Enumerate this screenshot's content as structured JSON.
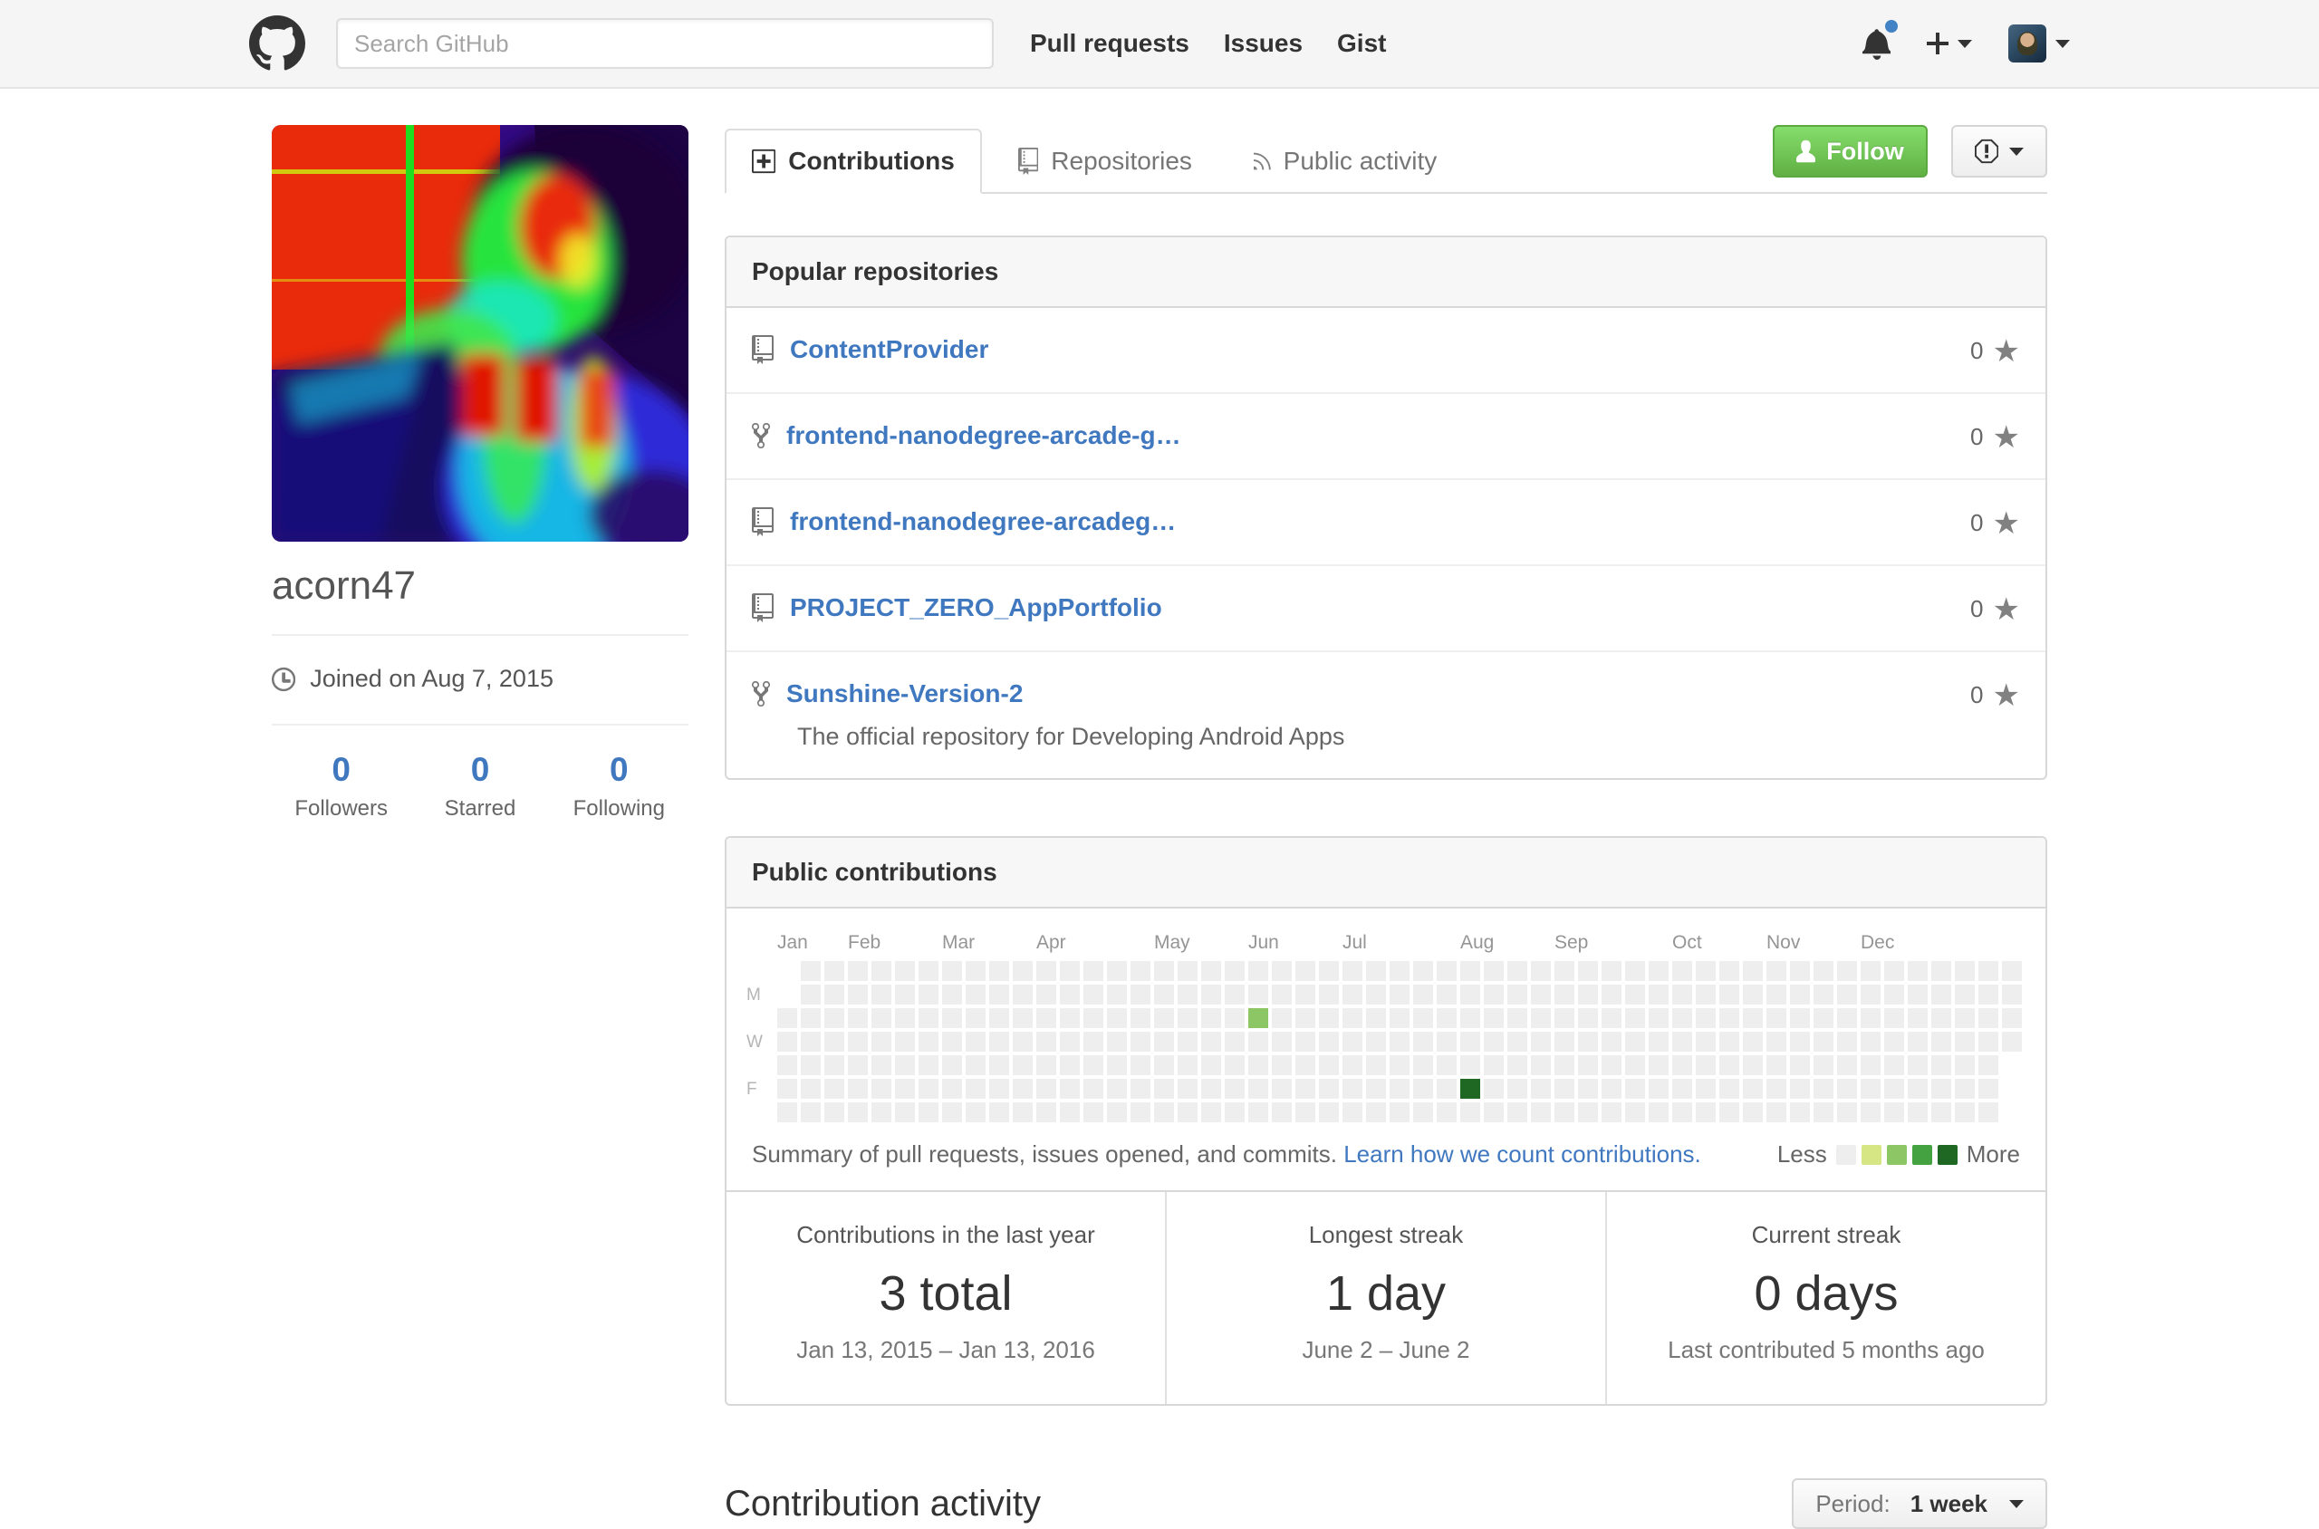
{
  "header": {
    "search_placeholder": "Search GitHub",
    "nav": [
      "Pull requests",
      "Issues",
      "Gist"
    ],
    "has_unread_notifications": true
  },
  "profile": {
    "username": "acorn47",
    "joined": "Joined on Aug 7, 2015",
    "stats": [
      {
        "count": "0",
        "label": "Followers"
      },
      {
        "count": "0",
        "label": "Starred"
      },
      {
        "count": "0",
        "label": "Following"
      }
    ]
  },
  "tabs": [
    {
      "label": "Contributions",
      "icon": "diff-added",
      "active": true
    },
    {
      "label": "Repositories",
      "icon": "repo",
      "active": false
    },
    {
      "label": "Public activity",
      "icon": "rss",
      "active": false
    }
  ],
  "actions": {
    "follow_label": "Follow"
  },
  "popular_repositories": {
    "title": "Popular repositories",
    "repos": [
      {
        "name": "ContentProvider",
        "icon": "repo",
        "stars": "0"
      },
      {
        "name": "frontend-nanodegree-arcade-g…",
        "icon": "repo-forked",
        "stars": "0"
      },
      {
        "name": "frontend-nanodegree-arcadeg…",
        "icon": "repo",
        "stars": "0"
      },
      {
        "name": "PROJECT_ZERO_AppPortfolio",
        "icon": "repo",
        "stars": "0"
      },
      {
        "name": "Sunshine-Version-2",
        "icon": "repo-forked",
        "stars": "0",
        "description": "The official repository for Developing Android Apps"
      }
    ]
  },
  "contributions": {
    "title": "Public contributions",
    "summary_text": "Summary of pull requests, issues opened, and commits.",
    "summary_link": "Learn how we count contributions.",
    "legend": {
      "less": "Less",
      "more": "More",
      "colors": [
        "#eeeeee",
        "#d6e685",
        "#8cc665",
        "#44a340",
        "#1e6823"
      ]
    },
    "calendar": {
      "weeks": 53,
      "empty_color": "#eeeeee",
      "first_week_start_row": 2,
      "last_week_end_row": 3,
      "day_labels": [
        {
          "label": "M",
          "row": 1
        },
        {
          "label": "W",
          "row": 3
        },
        {
          "label": "F",
          "row": 5
        }
      ],
      "months": [
        {
          "label": "Jan",
          "col": 0
        },
        {
          "label": "Feb",
          "col": 3
        },
        {
          "label": "Mar",
          "col": 7
        },
        {
          "label": "Apr",
          "col": 11
        },
        {
          "label": "May",
          "col": 16
        },
        {
          "label": "Jun",
          "col": 20
        },
        {
          "label": "Jul",
          "col": 24
        },
        {
          "label": "Aug",
          "col": 29
        },
        {
          "label": "Sep",
          "col": 33
        },
        {
          "label": "Oct",
          "col": 38
        },
        {
          "label": "Nov",
          "col": 42
        },
        {
          "label": "Dec",
          "col": 46
        }
      ],
      "marked_cells": [
        {
          "col": 20,
          "row": 2,
          "color": "#8cc665"
        },
        {
          "col": 29,
          "row": 5,
          "color": "#1e6823"
        }
      ]
    },
    "stats": [
      {
        "label": "Contributions in the last year",
        "value": "3 total",
        "sub": "Jan 13, 2015 – Jan 13, 2016"
      },
      {
        "label": "Longest streak",
        "value": "1 day",
        "sub": "June 2 – June 2"
      },
      {
        "label": "Current streak",
        "value": "0 days",
        "sub": "Last contributed 5 months ago"
      }
    ]
  },
  "activity": {
    "title": "Contribution activity",
    "period_label": "Period:",
    "period_value": "1 week"
  },
  "theme": {
    "link_blue": "#4078c0",
    "follow_button_green": "#60b044",
    "header_bg": "#f5f5f5"
  }
}
